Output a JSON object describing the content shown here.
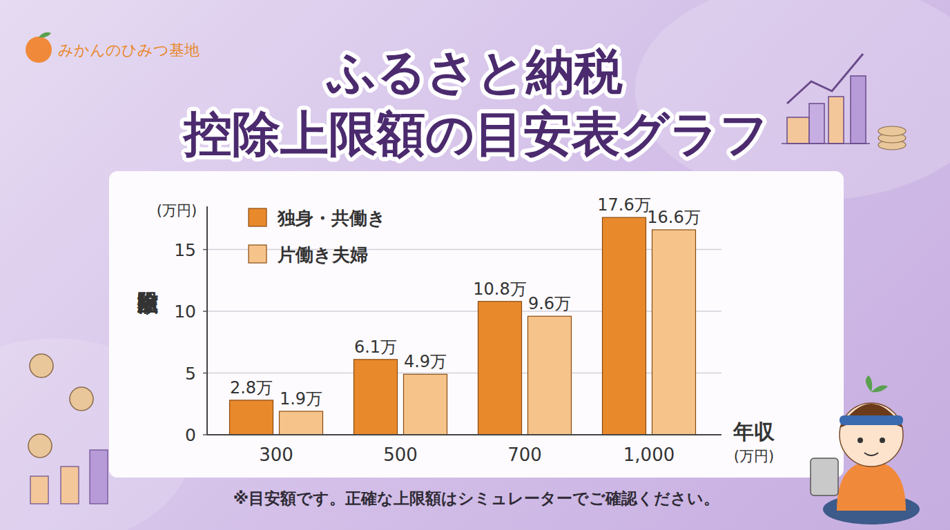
{
  "chart_data": {
    "type": "bar",
    "title": "ふるさと納税",
    "subtitle": "控除上限額の目安表グラフ",
    "annotations": [
      "みかんのひみつ基地",
      "※目安額です。正確な上限額はシミュレーターでご確認ください。"
    ],
    "x_label": "年収",
    "x_unit": "(万円)",
    "y_label": "控除上限額",
    "y_unit": "(万円)",
    "categories": [
      "300",
      "500",
      "700",
      {
        "value": 1000,
        "label": "1,000"
      }
    ],
    "series": [
      {
        "name": "独身・共働き",
        "color": "#e8892c",
        "values": [
          2.8,
          6.1,
          10.8,
          17.6
        ],
        "value_labels": [
          "2.8万",
          "6.1万",
          "10.8万",
          "17.6万"
        ]
      },
      {
        "name": "片働き夫婦",
        "color": "#f6c48a",
        "values": [
          1.9,
          4.9,
          9.6,
          16.6
        ],
        "value_labels": [
          "1.9万",
          "4.9万",
          "9.6万",
          "16.6万"
        ]
      }
    ],
    "ylim": [
      0,
      18.5
    ],
    "yticks": [
      0,
      5,
      10,
      15
    ],
    "grid": true,
    "legend": "top-left",
    "data_labels": true
  }
}
